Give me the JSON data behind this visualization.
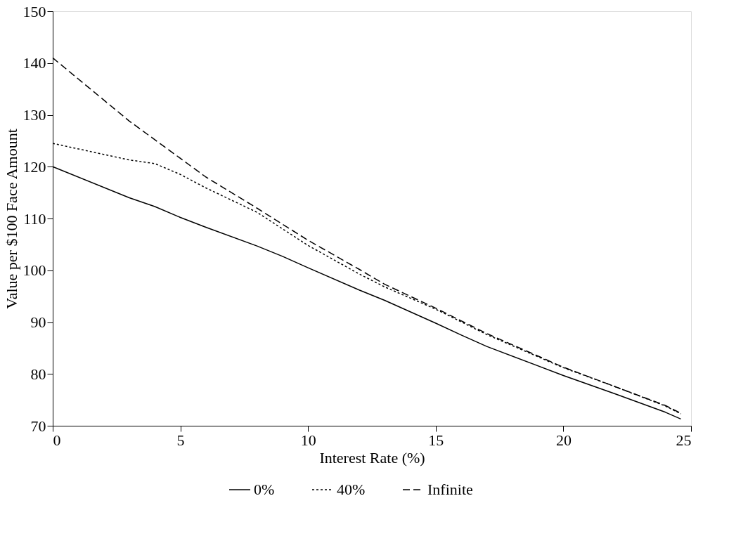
{
  "chart_data": {
    "type": "line",
    "xlabel": "Interest Rate (%)",
    "ylabel": "Value per $100 Face Amount",
    "xlim": [
      0,
      25
    ],
    "xticks": [
      0,
      5,
      10,
      15,
      20,
      25
    ],
    "ylim": [
      70,
      150
    ],
    "yticks": [
      70,
      80,
      90,
      100,
      110,
      120,
      130,
      140,
      150
    ],
    "grid": false,
    "legend": "bottom",
    "marker": "none",
    "series": [
      {
        "name": "0%",
        "color": "#000000",
        "line_style": "solid",
        "x": [
          0,
          3,
          4,
          5,
          6,
          8,
          9,
          10,
          12,
          13,
          15,
          16,
          17,
          20,
          22,
          24,
          24.6
        ],
        "values": [
          120,
          114,
          112.3,
          110.2,
          108.3,
          104.7,
          102.7,
          100.5,
          96.2,
          94.2,
          89.8,
          87.5,
          85.3,
          79.7,
          76.2,
          72.6,
          71.3
        ]
      },
      {
        "name": "40%",
        "color": "#000000",
        "line_style": "dotted",
        "x": [
          0,
          3,
          4,
          5,
          6,
          8,
          10,
          12,
          13,
          15,
          17,
          20,
          22,
          24,
          24.6
        ],
        "values": [
          124.5,
          121.3,
          120.6,
          118.5,
          115.9,
          111.2,
          104.8,
          99.3,
          96.8,
          92.5,
          87.6,
          81.2,
          77.6,
          73.8,
          72.3
        ]
      },
      {
        "name": "Infinite",
        "color": "#000000",
        "line_style": "dashed",
        "x": [
          0,
          3,
          4,
          5,
          6,
          8,
          10,
          12,
          13,
          15,
          17,
          20,
          22,
          24,
          24.6
        ],
        "values": [
          141,
          128.8,
          125.2,
          121.6,
          118,
          112,
          105.8,
          100.2,
          97.3,
          92.7,
          87.8,
          81.3,
          77.6,
          73.9,
          72.4
        ]
      }
    ]
  }
}
